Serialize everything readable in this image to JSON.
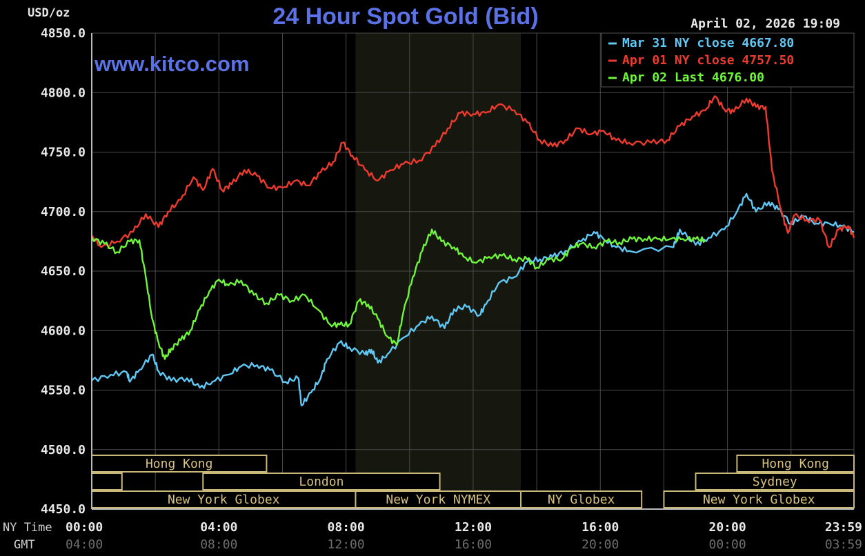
{
  "chart_data": {
    "type": "line",
    "title": "24 Hour Spot Gold (Bid)",
    "ylabel": "USD/oz",
    "watermark": "www.kitco.com",
    "timestamp": "April 02, 2026 19:09",
    "ylim": [
      4450,
      4850
    ],
    "yticks": [
      "4850.0",
      "4800.0",
      "4750.0",
      "4700.0",
      "4650.0",
      "4600.0",
      "4550.0",
      "4500.0",
      "4450.0"
    ],
    "x_row_labels": [
      "NY Time",
      "GMT"
    ],
    "x_ticks_ny": [
      "00:00",
      "04:00",
      "08:00",
      "12:00",
      "16:00",
      "20:00",
      "23:59"
    ],
    "x_ticks_gmt": [
      "04:00",
      "08:00",
      "12:00",
      "16:00",
      "20:00",
      "00:00",
      "03:59"
    ],
    "legend": [
      {
        "text": "Mar 31 NY close 4667.80",
        "color": "#5fc8f5"
      },
      {
        "text": "Apr 01 NY close 4757.50",
        "color": "#ee3b2e"
      },
      {
        "text": "Apr 02 Last 4676.00",
        "color": "#6ff53c"
      }
    ],
    "shaded_range_hours": [
      8.3,
      13.5
    ],
    "grid": true,
    "sessions": [
      {
        "label": "Hong Kong",
        "start": 0,
        "end": 5.5,
        "row": 0
      },
      {
        "label": "",
        "start": 0,
        "end": 0.95,
        "row": 1
      },
      {
        "label": "London",
        "start": 3.5,
        "end": 10.95,
        "row": 1
      },
      {
        "label": "New York Globex",
        "start": 0,
        "end": 8.3,
        "row": 2
      },
      {
        "label": "New York NYMEX",
        "start": 8.3,
        "end": 13.5,
        "row": 2
      },
      {
        "label": "NY Globex",
        "start": 13.5,
        "end": 17.3,
        "row": 2
      },
      {
        "label": "Hong Kong",
        "start": 20.3,
        "end": 23.98,
        "row": 0
      },
      {
        "label": "Sydney",
        "start": 19.0,
        "end": 23.98,
        "row": 1
      },
      {
        "label": "New York Globex",
        "start": 18.0,
        "end": 23.98,
        "row": 2
      }
    ],
    "series": [
      {
        "name": "Mar 31 NY close 4667.80",
        "color": "#5fc8f5",
        "points": [
          [
            0,
            4558
          ],
          [
            0.6,
            4563
          ],
          [
            1.1,
            4565
          ],
          [
            1.2,
            4557
          ],
          [
            1.5,
            4567
          ],
          [
            1.9,
            4580
          ],
          [
            2.1,
            4566
          ],
          [
            2.5,
            4558
          ],
          [
            3.0,
            4560
          ],
          [
            3.4,
            4552
          ],
          [
            3.8,
            4557
          ],
          [
            4.3,
            4563
          ],
          [
            4.7,
            4570
          ],
          [
            5.2,
            4571
          ],
          [
            5.6,
            4567
          ],
          [
            6.1,
            4557
          ],
          [
            6.5,
            4560
          ],
          [
            6.6,
            4537
          ],
          [
            6.9,
            4548
          ],
          [
            7.2,
            4560
          ],
          [
            7.4,
            4576
          ],
          [
            7.8,
            4590
          ],
          [
            8.1,
            4586
          ],
          [
            8.6,
            4580
          ],
          [
            8.8,
            4584
          ],
          [
            9.0,
            4573
          ],
          [
            9.3,
            4580
          ],
          [
            9.8,
            4594
          ],
          [
            10.3,
            4605
          ],
          [
            10.7,
            4612
          ],
          [
            11.1,
            4602
          ],
          [
            11.4,
            4618
          ],
          [
            11.8,
            4620
          ],
          [
            12.2,
            4613
          ],
          [
            12.4,
            4622
          ],
          [
            12.8,
            4640
          ],
          [
            13.3,
            4645
          ],
          [
            13.7,
            4658
          ],
          [
            14.1,
            4660
          ],
          [
            14.5,
            4662
          ],
          [
            14.9,
            4667
          ],
          [
            15.4,
            4675
          ],
          [
            15.8,
            4683
          ],
          [
            16.1,
            4677
          ],
          [
            16.5,
            4670
          ],
          [
            16.9,
            4667
          ],
          [
            18.3,
            4670
          ],
          [
            18.5,
            4685
          ],
          [
            19.0,
            4672
          ],
          [
            19.4,
            4678
          ],
          [
            19.9,
            4685
          ],
          [
            20.3,
            4700
          ],
          [
            20.6,
            4715
          ],
          [
            20.9,
            4700
          ],
          [
            21.3,
            4708
          ],
          [
            21.6,
            4702
          ],
          [
            22.0,
            4690
          ],
          [
            22.4,
            4696
          ],
          [
            22.8,
            4690
          ],
          [
            23.2,
            4690
          ],
          [
            23.6,
            4688
          ],
          [
            23.98,
            4683
          ]
        ]
      },
      {
        "name": "Apr 01 NY close 4757.50",
        "color": "#ee3b2e",
        "points": [
          [
            0,
            4680
          ],
          [
            0.3,
            4670
          ],
          [
            0.8,
            4675
          ],
          [
            1.3,
            4683
          ],
          [
            1.7,
            4698
          ],
          [
            2.1,
            4687
          ],
          [
            2.4,
            4700
          ],
          [
            2.8,
            4710
          ],
          [
            3.2,
            4729
          ],
          [
            3.5,
            4718
          ],
          [
            3.8,
            4736
          ],
          [
            4.1,
            4718
          ],
          [
            4.4,
            4723
          ],
          [
            4.8,
            4735
          ],
          [
            5.2,
            4730
          ],
          [
            5.6,
            4720
          ],
          [
            6.0,
            4720
          ],
          [
            6.4,
            4726
          ],
          [
            6.8,
            4722
          ],
          [
            7.2,
            4733
          ],
          [
            7.6,
            4742
          ],
          [
            7.9,
            4758
          ],
          [
            8.2,
            4747
          ],
          [
            8.6,
            4735
          ],
          [
            9.0,
            4726
          ],
          [
            9.4,
            4735
          ],
          [
            9.8,
            4740
          ],
          [
            10.3,
            4743
          ],
          [
            10.8,
            4755
          ],
          [
            11.2,
            4770
          ],
          [
            11.6,
            4783
          ],
          [
            12.0,
            4782
          ],
          [
            12.4,
            4783
          ],
          [
            12.8,
            4790
          ],
          [
            13.3,
            4785
          ],
          [
            13.7,
            4775
          ],
          [
            14.1,
            4760
          ],
          [
            14.5,
            4755
          ],
          [
            14.9,
            4760
          ],
          [
            15.3,
            4770
          ],
          [
            15.7,
            4765
          ],
          [
            16.1,
            4768
          ],
          [
            16.5,
            4760
          ],
          [
            16.9,
            4758
          ],
          [
            17.6,
            4758
          ],
          [
            18.1,
            4760
          ],
          [
            18.5,
            4772
          ],
          [
            18.9,
            4780
          ],
          [
            19.3,
            4785
          ],
          [
            19.6,
            4797
          ],
          [
            19.9,
            4786
          ],
          [
            20.2,
            4784
          ],
          [
            20.6,
            4795
          ],
          [
            20.9,
            4788
          ],
          [
            21.2,
            4788
          ],
          [
            21.4,
            4735
          ],
          [
            21.7,
            4700
          ],
          [
            21.9,
            4682
          ],
          [
            22.1,
            4697
          ],
          [
            22.5,
            4693
          ],
          [
            22.9,
            4693
          ],
          [
            23.2,
            4670
          ],
          [
            23.5,
            4685
          ],
          [
            23.8,
            4688
          ],
          [
            23.98,
            4678
          ]
        ]
      },
      {
        "name": "Apr 02 Last 4676.00",
        "color": "#6ff53c",
        "points": [
          [
            0,
            4678
          ],
          [
            0.4,
            4673
          ],
          [
            0.8,
            4666
          ],
          [
            1.2,
            4675
          ],
          [
            1.5,
            4676
          ],
          [
            1.7,
            4645
          ],
          [
            1.9,
            4610
          ],
          [
            2.1,
            4590
          ],
          [
            2.3,
            4576
          ],
          [
            2.5,
            4585
          ],
          [
            2.8,
            4592
          ],
          [
            3.1,
            4600
          ],
          [
            3.4,
            4618
          ],
          [
            3.7,
            4633
          ],
          [
            4.0,
            4643
          ],
          [
            4.3,
            4638
          ],
          [
            4.7,
            4642
          ],
          [
            5.1,
            4630
          ],
          [
            5.5,
            4623
          ],
          [
            5.9,
            4630
          ],
          [
            6.3,
            4625
          ],
          [
            6.7,
            4630
          ],
          [
            7.1,
            4618
          ],
          [
            7.5,
            4605
          ],
          [
            7.8,
            4605
          ],
          [
            8.1,
            4605
          ],
          [
            8.4,
            4625
          ],
          [
            8.7,
            4622
          ],
          [
            9.0,
            4610
          ],
          [
            9.3,
            4595
          ],
          [
            9.6,
            4588
          ],
          [
            9.8,
            4615
          ],
          [
            10.1,
            4645
          ],
          [
            10.4,
            4667
          ],
          [
            10.7,
            4685
          ],
          [
            11.0,
            4675
          ],
          [
            11.4,
            4670
          ],
          [
            11.7,
            4662
          ],
          [
            12.1,
            4657
          ],
          [
            12.5,
            4662
          ],
          [
            12.9,
            4663
          ],
          [
            13.3,
            4660
          ],
          [
            13.7,
            4660
          ],
          [
            14.0,
            4653
          ],
          [
            14.4,
            4660
          ],
          [
            14.8,
            4660
          ],
          [
            15.1,
            4670
          ],
          [
            15.4,
            4673
          ],
          [
            15.8,
            4670
          ],
          [
            16.2,
            4675
          ],
          [
            16.6,
            4674
          ],
          [
            17.0,
            4677
          ],
          [
            17.4,
            4677
          ],
          [
            17.8,
            4677
          ],
          [
            18.2,
            4677
          ],
          [
            18.6,
            4677
          ],
          [
            19.0,
            4677
          ],
          [
            19.3,
            4676
          ]
        ]
      }
    ]
  }
}
